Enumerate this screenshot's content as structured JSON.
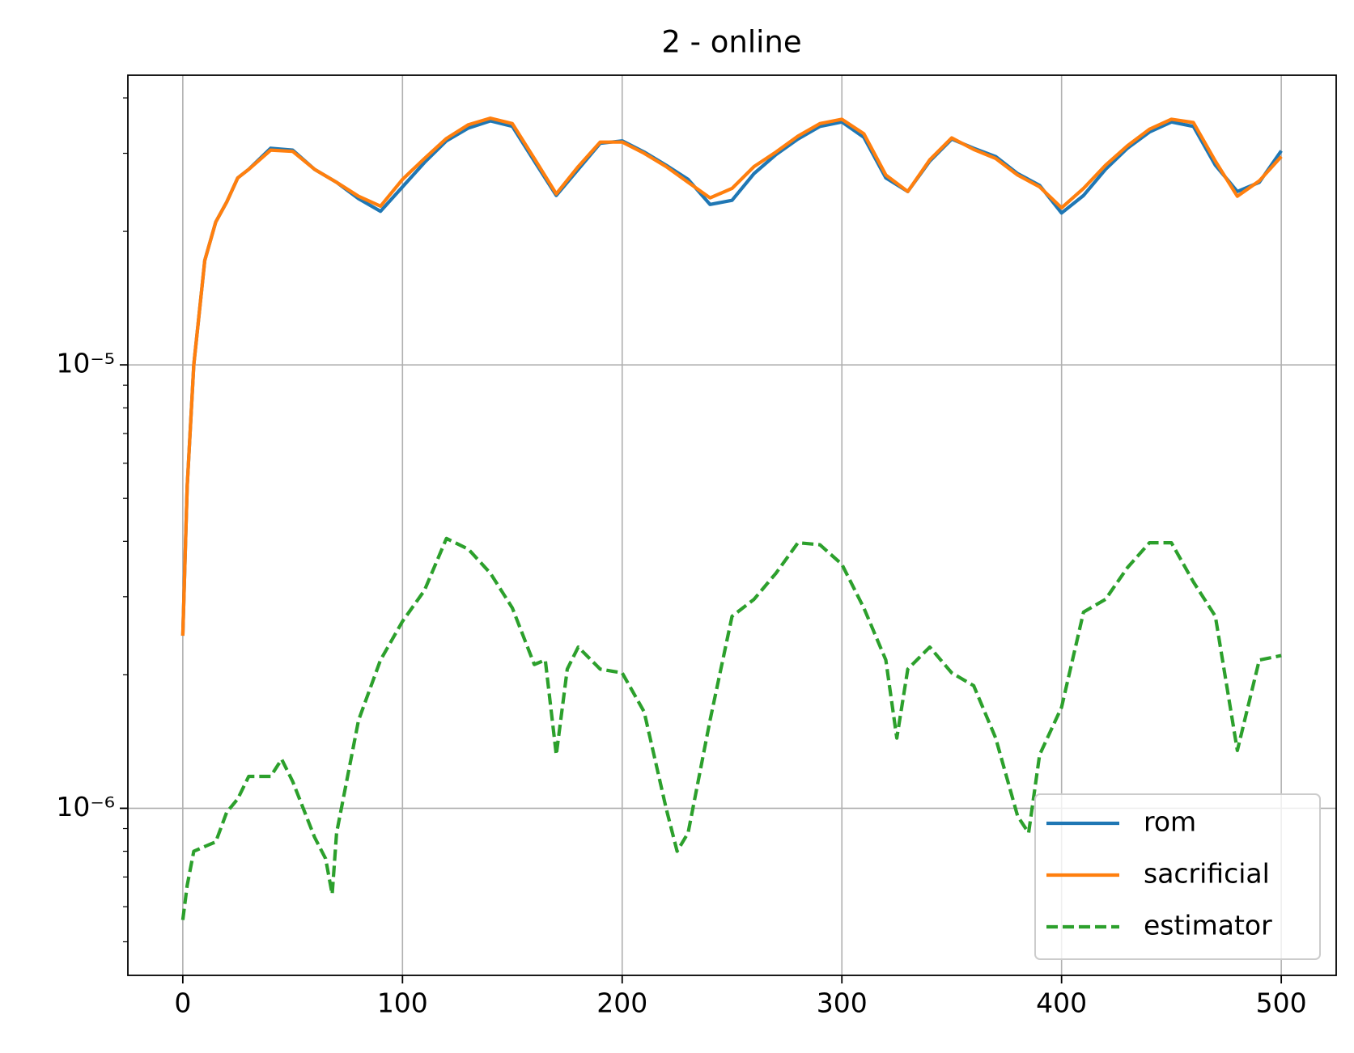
{
  "chart_data": {
    "type": "line",
    "title": "2 - online",
    "yscale": "log",
    "grid": true,
    "legend": "lower right",
    "xlim": [
      -25,
      525
    ],
    "xticks": [
      0,
      100,
      200,
      300,
      400,
      500
    ],
    "ylim": [
      4.2e-07,
      4.5e-05
    ],
    "yticks": [
      {
        "value": 1e-06,
        "label": "10⁻⁶"
      },
      {
        "value": 1e-05,
        "label": "10⁻⁵"
      }
    ],
    "yminorticks": [
      5e-07,
      6e-07,
      7e-07,
      8e-07,
      9e-07,
      2e-06,
      3e-06,
      4e-06,
      5e-06,
      6e-06,
      7e-06,
      8e-06,
      9e-06,
      2e-05,
      3e-05,
      4e-05
    ],
    "series": [
      {
        "name": "rom",
        "color": "#1f77b4",
        "linestyle": "solid",
        "x": [
          0,
          2,
          5,
          10,
          15,
          20,
          25,
          30,
          40,
          50,
          60,
          70,
          80,
          90,
          100,
          110,
          120,
          130,
          140,
          150,
          160,
          170,
          180,
          190,
          200,
          210,
          220,
          230,
          240,
          250,
          260,
          270,
          280,
          290,
          300,
          310,
          320,
          330,
          340,
          350,
          360,
          370,
          380,
          390,
          400,
          410,
          420,
          430,
          440,
          450,
          460,
          470,
          480,
          490,
          500
        ],
        "values": [
          2.45e-06,
          5.32e-06,
          1e-05,
          1.72e-05,
          2.1e-05,
          2.33e-05,
          2.64e-05,
          2.76e-05,
          3.08e-05,
          3.05e-05,
          2.76e-05,
          2.58e-05,
          2.37e-05,
          2.22e-05,
          2.52e-05,
          2.86e-05,
          3.2e-05,
          3.42e-05,
          3.55e-05,
          3.45e-05,
          2.88e-05,
          2.41e-05,
          2.76e-05,
          3.16e-05,
          3.2e-05,
          3.02e-05,
          2.82e-05,
          2.62e-05,
          2.3e-05,
          2.35e-05,
          2.7e-05,
          2.98e-05,
          3.23e-05,
          3.45e-05,
          3.53e-05,
          3.26e-05,
          2.64e-05,
          2.46e-05,
          2.88e-05,
          3.23e-05,
          3.08e-05,
          2.95e-05,
          2.7e-05,
          2.54e-05,
          2.2e-05,
          2.41e-05,
          2.76e-05,
          3.08e-05,
          3.35e-05,
          3.53e-05,
          3.45e-05,
          2.82e-05,
          2.46e-05,
          2.58e-05,
          3.04e-05
        ]
      },
      {
        "name": "sacrificial",
        "color": "#ff7f0e",
        "linestyle": "solid",
        "x": [
          0,
          2,
          5,
          10,
          15,
          20,
          25,
          30,
          40,
          50,
          60,
          70,
          80,
          90,
          100,
          110,
          120,
          130,
          140,
          150,
          160,
          170,
          180,
          190,
          200,
          210,
          220,
          230,
          240,
          250,
          260,
          270,
          280,
          290,
          300,
          310,
          320,
          330,
          340,
          350,
          360,
          370,
          380,
          390,
          400,
          410,
          420,
          430,
          440,
          450,
          460,
          470,
          480,
          490,
          500
        ],
        "values": [
          2.45e-06,
          5.32e-06,
          1e-05,
          1.72e-05,
          2.1e-05,
          2.33e-05,
          2.64e-05,
          2.76e-05,
          3.05e-05,
          3.03e-05,
          2.76e-05,
          2.58e-05,
          2.4e-05,
          2.28e-05,
          2.62e-05,
          2.92e-05,
          3.24e-05,
          3.48e-05,
          3.6e-05,
          3.5e-05,
          2.92e-05,
          2.43e-05,
          2.8e-05,
          3.18e-05,
          3.18e-05,
          3e-05,
          2.8e-05,
          2.58e-05,
          2.38e-05,
          2.5e-05,
          2.8e-05,
          3.02e-05,
          3.28e-05,
          3.5e-05,
          3.58e-05,
          3.32e-05,
          2.68e-05,
          2.46e-05,
          2.9e-05,
          3.25e-05,
          3.06e-05,
          2.92e-05,
          2.68e-05,
          2.52e-05,
          2.26e-05,
          2.5e-05,
          2.82e-05,
          3.12e-05,
          3.4e-05,
          3.58e-05,
          3.52e-05,
          2.88e-05,
          2.4e-05,
          2.6e-05,
          2.95e-05
        ]
      },
      {
        "name": "estimator",
        "color": "#2ca02c",
        "linestyle": "dashed",
        "x": [
          0,
          2,
          5,
          10,
          15,
          20,
          25,
          30,
          40,
          45,
          50,
          60,
          65,
          68,
          70,
          80,
          90,
          100,
          110,
          120,
          130,
          140,
          150,
          160,
          165,
          170,
          175,
          180,
          190,
          200,
          210,
          220,
          225,
          230,
          240,
          250,
          260,
          270,
          280,
          290,
          300,
          310,
          320,
          325,
          330,
          340,
          350,
          360,
          370,
          380,
          385,
          390,
          400,
          410,
          420,
          430,
          440,
          450,
          460,
          470,
          480,
          490,
          500
        ],
        "values": [
          5.6e-07,
          6.7e-07,
          8e-07,
          8.2e-07,
          8.4e-07,
          9.8e-07,
          1.05e-06,
          1.18e-06,
          1.18e-06,
          1.29e-06,
          1.15e-06,
          8.6e-07,
          7.7e-07,
          6.4e-07,
          8.8e-07,
          1.58e-06,
          2.16e-06,
          2.64e-06,
          3.1e-06,
          4.06e-06,
          3.84e-06,
          3.39e-06,
          2.83e-06,
          2.11e-06,
          2.16e-06,
          1.32e-06,
          2.06e-06,
          2.31e-06,
          2.06e-06,
          2.02e-06,
          1.65e-06,
          1e-06,
          8e-07,
          8.8e-07,
          1.58e-06,
          2.71e-06,
          2.96e-06,
          3.39e-06,
          3.97e-06,
          3.93e-06,
          3.55e-06,
          2.83e-06,
          2.16e-06,
          1.44e-06,
          2.06e-06,
          2.31e-06,
          2.02e-06,
          1.89e-06,
          1.44e-06,
          9.6e-07,
          8.8e-07,
          1.32e-06,
          1.69e-06,
          2.77e-06,
          2.96e-06,
          3.49e-06,
          3.97e-06,
          3.97e-06,
          3.24e-06,
          2.71e-06,
          1.35e-06,
          2.16e-06,
          2.21e-06
        ]
      }
    ]
  }
}
